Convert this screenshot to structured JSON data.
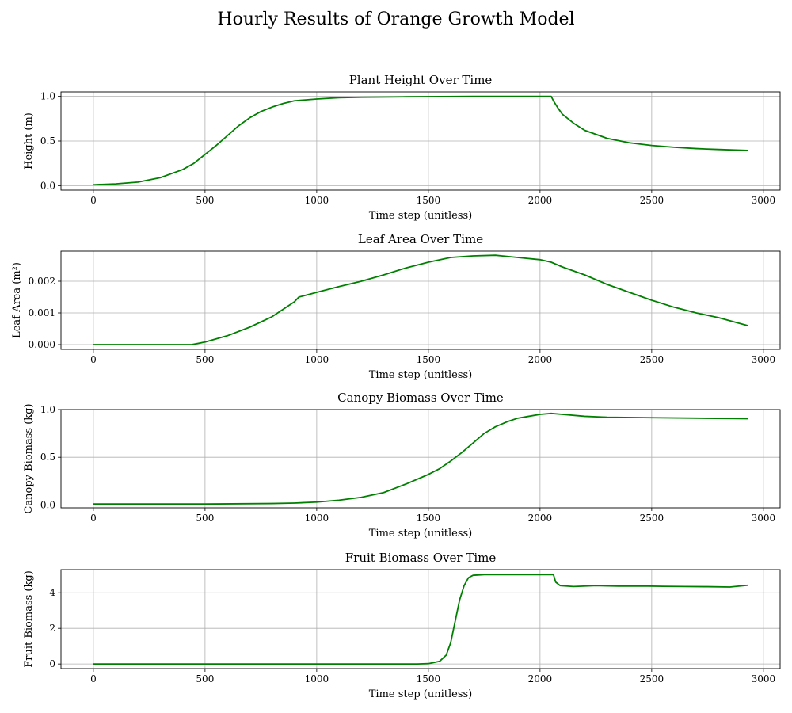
{
  "figure": {
    "title": "Hourly Results of Orange Growth Model"
  },
  "colors": {
    "line": "#008000",
    "grid": "#b0b0b0",
    "axes": "#000000"
  },
  "chart_data": [
    {
      "type": "line",
      "title": "Plant Height Over Time",
      "xlabel": "Time step (unitless)",
      "ylabel": "Height (m)",
      "xlim": [
        -145,
        3075
      ],
      "ylim": [
        -0.05,
        1.05
      ],
      "xticks": [
        0,
        500,
        1000,
        1500,
        2000,
        2500,
        3000
      ],
      "yticks": [
        0.0,
        0.5,
        1.0
      ],
      "ytick_labels": [
        "0.0",
        "0.5",
        "1.0"
      ],
      "grid": true,
      "series": [
        {
          "values": [
            [
              0,
              0.01
            ],
            [
              100,
              0.02
            ],
            [
              200,
              0.04
            ],
            [
              300,
              0.09
            ],
            [
              400,
              0.18
            ],
            [
              450,
              0.25
            ],
            [
              500,
              0.35
            ],
            [
              550,
              0.45
            ],
            [
              600,
              0.56
            ],
            [
              650,
              0.67
            ],
            [
              700,
              0.76
            ],
            [
              750,
              0.83
            ],
            [
              800,
              0.88
            ],
            [
              850,
              0.92
            ],
            [
              900,
              0.95
            ],
            [
              1000,
              0.97
            ],
            [
              1100,
              0.985
            ],
            [
              1200,
              0.99
            ],
            [
              1400,
              0.995
            ],
            [
              1700,
              1.0
            ],
            [
              2050,
              1.0
            ],
            [
              2060,
              0.95
            ],
            [
              2080,
              0.87
            ],
            [
              2100,
              0.8
            ],
            [
              2150,
              0.7
            ],
            [
              2200,
              0.62
            ],
            [
              2300,
              0.53
            ],
            [
              2400,
              0.48
            ],
            [
              2500,
              0.45
            ],
            [
              2600,
              0.43
            ],
            [
              2700,
              0.415
            ],
            [
              2800,
              0.405
            ],
            [
              2930,
              0.395
            ]
          ]
        }
      ]
    },
    {
      "type": "line",
      "title": "Leaf Area Over Time",
      "xlabel": "Time step (unitless)",
      "ylabel": "Leaf Area (m²)",
      "xlim": [
        -145,
        3075
      ],
      "ylim": [
        -0.00015,
        0.00295
      ],
      "xticks": [
        0,
        500,
        1000,
        1500,
        2000,
        2500,
        3000
      ],
      "yticks": [
        0.0,
        0.001,
        0.002
      ],
      "ytick_labels": [
        "0.000",
        "0.001",
        "0.002"
      ],
      "grid": true,
      "series": [
        {
          "values": [
            [
              0,
              0.0
            ],
            [
              440,
              0.0
            ],
            [
              500,
              8e-05
            ],
            [
              600,
              0.00028
            ],
            [
              700,
              0.00055
            ],
            [
              800,
              0.00088
            ],
            [
              900,
              0.00135
            ],
            [
              920,
              0.0015
            ],
            [
              1000,
              0.00165
            ],
            [
              1100,
              0.00183
            ],
            [
              1200,
              0.002
            ],
            [
              1300,
              0.0022
            ],
            [
              1400,
              0.00242
            ],
            [
              1500,
              0.0026
            ],
            [
              1600,
              0.00275
            ],
            [
              1700,
              0.0028
            ],
            [
              1800,
              0.00282
            ],
            [
              1900,
              0.00275
            ],
            [
              2000,
              0.00268
            ],
            [
              2050,
              0.0026
            ],
            [
              2100,
              0.00245
            ],
            [
              2200,
              0.0022
            ],
            [
              2300,
              0.0019
            ],
            [
              2400,
              0.00165
            ],
            [
              2500,
              0.0014
            ],
            [
              2600,
              0.00118
            ],
            [
              2700,
              0.001
            ],
            [
              2800,
              0.00085
            ],
            [
              2930,
              0.0006
            ]
          ]
        }
      ]
    },
    {
      "type": "line",
      "title": "Canopy Biomass Over Time",
      "xlabel": "Time step (unitless)",
      "ylabel": "Canopy Biomass (kg)",
      "xlim": [
        -145,
        3075
      ],
      "ylim": [
        -0.03,
        1.0
      ],
      "xticks": [
        0,
        500,
        1000,
        1500,
        2000,
        2500,
        3000
      ],
      "yticks": [
        0.0,
        0.5,
        1.0
      ],
      "ytick_labels": [
        "0.0",
        "0.5",
        "1.0"
      ],
      "grid": true,
      "series": [
        {
          "values": [
            [
              0,
              0.01
            ],
            [
              500,
              0.01
            ],
            [
              800,
              0.015
            ],
            [
              900,
              0.02
            ],
            [
              1000,
              0.03
            ],
            [
              1100,
              0.05
            ],
            [
              1200,
              0.08
            ],
            [
              1300,
              0.13
            ],
            [
              1400,
              0.22
            ],
            [
              1500,
              0.32
            ],
            [
              1550,
              0.38
            ],
            [
              1600,
              0.46
            ],
            [
              1650,
              0.55
            ],
            [
              1700,
              0.65
            ],
            [
              1750,
              0.75
            ],
            [
              1800,
              0.82
            ],
            [
              1850,
              0.87
            ],
            [
              1900,
              0.91
            ],
            [
              1950,
              0.93
            ],
            [
              2000,
              0.95
            ],
            [
              2050,
              0.96
            ],
            [
              2100,
              0.95
            ],
            [
              2200,
              0.93
            ],
            [
              2300,
              0.92
            ],
            [
              2500,
              0.915
            ],
            [
              2700,
              0.91
            ],
            [
              2930,
              0.905
            ]
          ]
        }
      ]
    },
    {
      "type": "line",
      "title": "Fruit Biomass Over Time",
      "xlabel": "Time step (unitless)",
      "ylabel": "Fruit Biomass (kg)",
      "xlim": [
        -145,
        3075
      ],
      "ylim": [
        -0.26,
        5.3
      ],
      "xticks": [
        0,
        500,
        1000,
        1500,
        2000,
        2500,
        3000
      ],
      "yticks": [
        0,
        2,
        4
      ],
      "ytick_labels": [
        "0",
        "2",
        "4"
      ],
      "grid": true,
      "series": [
        {
          "values": [
            [
              0,
              0.0
            ],
            [
              1450,
              0.0
            ],
            [
              1500,
              0.02
            ],
            [
              1550,
              0.15
            ],
            [
              1580,
              0.5
            ],
            [
              1600,
              1.2
            ],
            [
              1620,
              2.4
            ],
            [
              1640,
              3.6
            ],
            [
              1660,
              4.4
            ],
            [
              1680,
              4.85
            ],
            [
              1700,
              4.98
            ],
            [
              1750,
              5.02
            ],
            [
              2060,
              5.02
            ],
            [
              2070,
              4.6
            ],
            [
              2090,
              4.4
            ],
            [
              2150,
              4.35
            ],
            [
              2250,
              4.4
            ],
            [
              2350,
              4.37
            ],
            [
              2450,
              4.38
            ],
            [
              2550,
              4.36
            ],
            [
              2650,
              4.35
            ],
            [
              2750,
              4.34
            ],
            [
              2850,
              4.32
            ],
            [
              2930,
              4.42
            ]
          ]
        }
      ]
    }
  ]
}
